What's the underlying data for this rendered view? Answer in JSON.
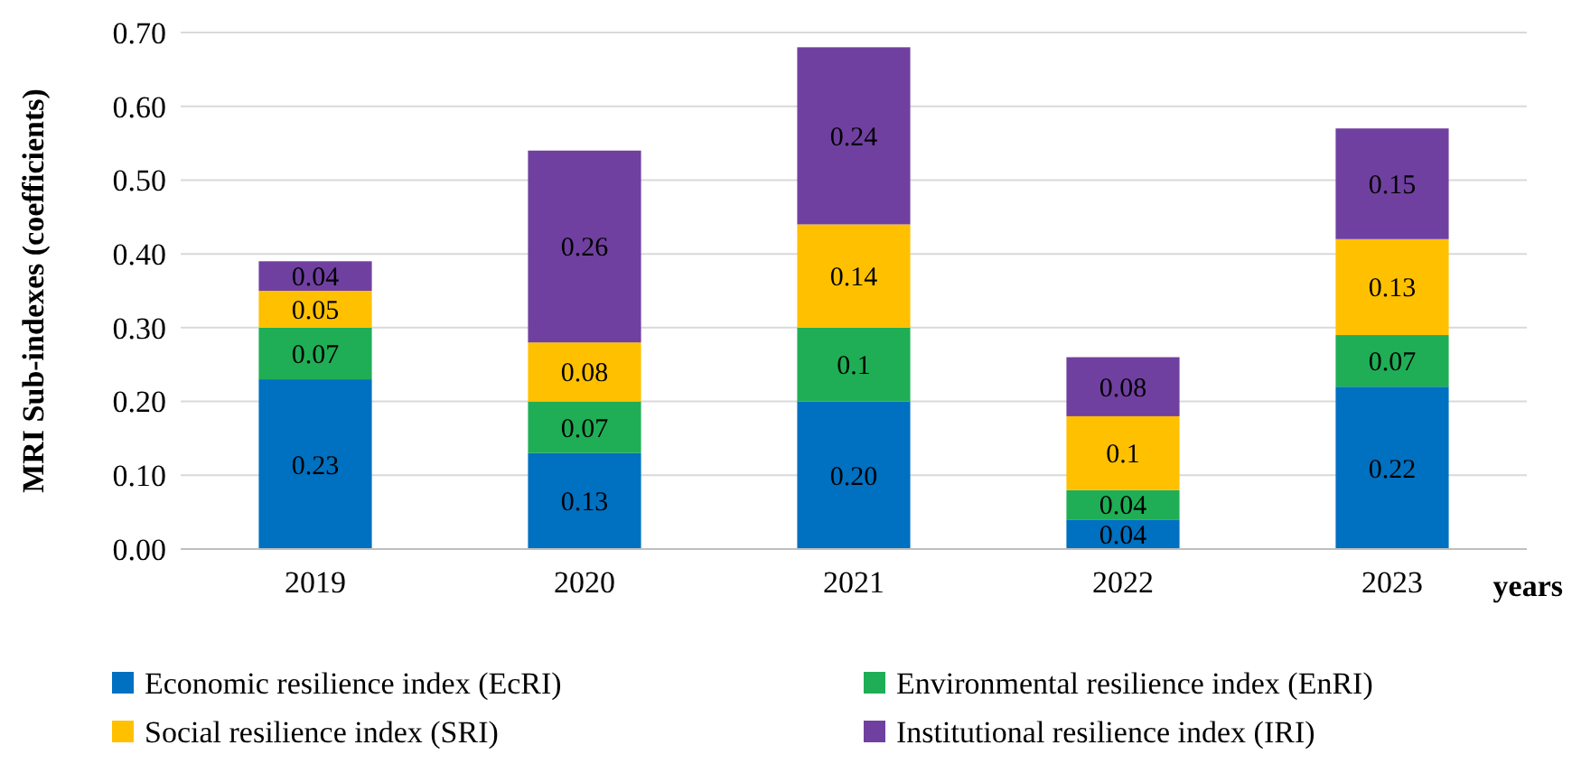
{
  "chart_data": {
    "type": "bar",
    "stacked": true,
    "ylabel": "MRI Sub-indexes (coefficients)",
    "xlabel": "years",
    "categories": [
      "2019",
      "2020",
      "2021",
      "2022",
      "2023"
    ],
    "series": [
      {
        "name": "Economic resilience index (EcRI)",
        "color": "#0070c0",
        "values": [
          0.23,
          0.13,
          0.2,
          0.04,
          0.22
        ],
        "value_labels": [
          "0.23",
          "0.13",
          "0.20",
          "0.04",
          "0.22"
        ]
      },
      {
        "name": "Environmental resilience index (EnRI)",
        "color": "#1fae55",
        "values": [
          0.07,
          0.07,
          0.1,
          0.04,
          0.07
        ],
        "value_labels": [
          "0.07",
          "0.07",
          "0.1",
          "0.04",
          "0.07"
        ]
      },
      {
        "name": "Social resilience index (SRI)",
        "color": "#ffc000",
        "values": [
          0.05,
          0.08,
          0.14,
          0.1,
          0.13
        ],
        "value_labels": [
          "0.05",
          "0.08",
          "0.14",
          "0.1",
          "0.13"
        ]
      },
      {
        "name": "Institutional resilience index (IRI)",
        "color": "#7040a0",
        "values": [
          0.04,
          0.26,
          0.24,
          0.08,
          0.15
        ],
        "value_labels": [
          "0.04",
          "0.26",
          "0.24",
          "0.08",
          "0.15"
        ]
      }
    ],
    "ylim": [
      0,
      0.7
    ],
    "yticks": [
      {
        "value": 0,
        "label": "0.00"
      },
      {
        "value": 0.1,
        "label": "0.10"
      },
      {
        "value": 0.2,
        "label": "0.20"
      },
      {
        "value": 0.3,
        "label": "0.30"
      },
      {
        "value": 0.4,
        "label": "0.40"
      },
      {
        "value": 0.5,
        "label": "0.50"
      },
      {
        "value": 0.6,
        "label": "0.60"
      },
      {
        "value": 0.7,
        "label": "0.70"
      }
    ],
    "grid": "y",
    "legend": "bottom"
  }
}
